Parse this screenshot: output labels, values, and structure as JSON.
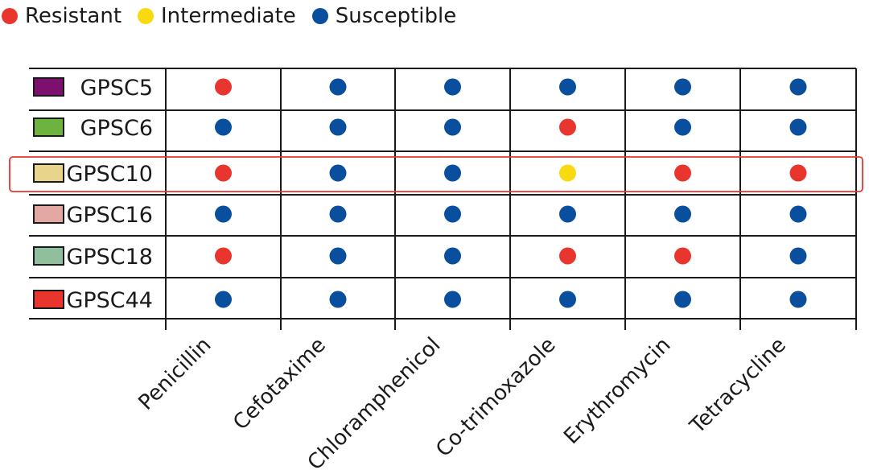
{
  "chart_data": {
    "type": "table",
    "legend": [
      {
        "key": "R",
        "label": "Resistant",
        "color": "#e8352e"
      },
      {
        "key": "I",
        "label": "Intermediate",
        "color": "#f9d90f"
      },
      {
        "key": "S",
        "label": "Susceptible",
        "color": "#0a4f9e"
      }
    ],
    "columns": [
      "Penicillin",
      "Cefotaxime",
      "Chloramphenicol",
      "Co-trimoxazole",
      "Erythromycin",
      "Tetracycline"
    ],
    "rows": [
      {
        "label": "GPSC5",
        "swatch": "#7d0f6e",
        "values": [
          "R",
          "S",
          "S",
          "S",
          "S",
          "S"
        ]
      },
      {
        "label": "GPSC6",
        "swatch": "#6db33f",
        "values": [
          "S",
          "S",
          "S",
          "R",
          "S",
          "S"
        ]
      },
      {
        "label": "GPSC10",
        "swatch": "#e8d48a",
        "values": [
          "R",
          "S",
          "S",
          "I",
          "R",
          "R"
        ]
      },
      {
        "label": "GPSC16",
        "swatch": "#e3a8a3",
        "values": [
          "S",
          "S",
          "S",
          "S",
          "S",
          "S"
        ]
      },
      {
        "label": "GPSC18",
        "swatch": "#8fbf9c",
        "values": [
          "R",
          "S",
          "S",
          "R",
          "R",
          "S"
        ]
      },
      {
        "label": "GPSC44",
        "swatch": "#e8352e",
        "values": [
          "S",
          "S",
          "S",
          "S",
          "S",
          "S"
        ]
      }
    ],
    "highlighted_row": "GPSC10",
    "highlight_color": "#e8352e"
  }
}
